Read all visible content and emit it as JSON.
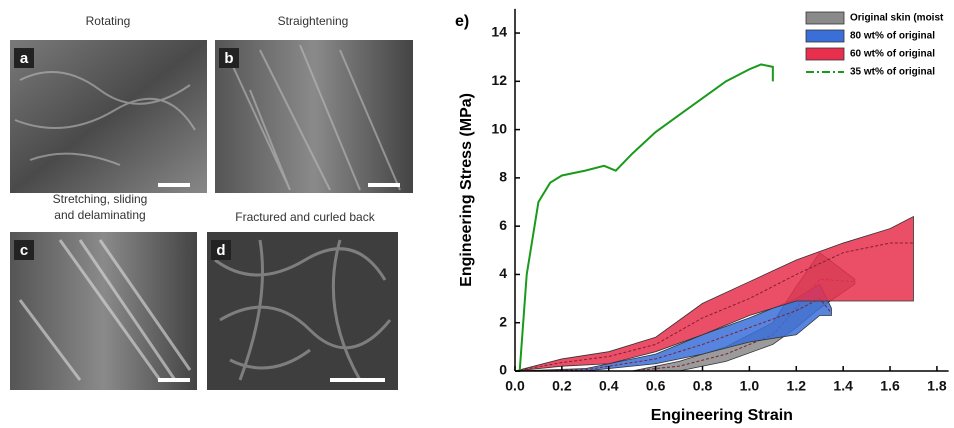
{
  "panels": [
    {
      "label": "a",
      "caption": [
        "Rotating"
      ]
    },
    {
      "label": "b",
      "caption": [
        "Straightening"
      ]
    },
    {
      "label": "c",
      "caption": [
        "Stretching, sliding",
        "and delaminating"
      ]
    },
    {
      "label": "d",
      "caption": [
        "Fractured and curled back"
      ]
    }
  ],
  "chart_data": {
    "type": "line",
    "panel_label": "e)",
    "x_label": "Engineering Strain",
    "y_label": "Engineering Stress (MPa)",
    "xlim": [
      0,
      1.85
    ],
    "ylim": [
      0,
      15
    ],
    "xticks": [
      {
        "value": 0,
        "label": "0.0"
      },
      0.2,
      0.4,
      0.6,
      0.8,
      {
        "value": 1,
        "label": "1.0"
      },
      1.2,
      1.4,
      1.6,
      1.8
    ],
    "yticks": [
      0,
      2,
      4,
      6,
      8,
      10,
      12,
      14
    ],
    "series": [
      {
        "name": "Original skin (moist",
        "color": "#8a8a8a",
        "style": "band",
        "x": [
          0.5,
          0.7,
          0.9,
          1.1,
          1.2,
          1.3,
          1.45
        ],
        "upper": [
          0,
          0.4,
          1.0,
          2.0,
          3.5,
          4.9,
          3.8
        ],
        "lower": [
          0,
          0,
          0.4,
          1.1,
          1.8,
          2.6,
          3.6
        ],
        "values": [
          0,
          0.2,
          0.7,
          1.5,
          2.6,
          3.8,
          3.7
        ]
      },
      {
        "name": "80 wt% of original",
        "color": "#3a6fd8",
        "style": "band",
        "x": [
          0,
          0.3,
          0.6,
          0.8,
          1.0,
          1.2,
          1.3,
          1.35
        ],
        "upper": [
          0,
          0.1,
          0.7,
          1.5,
          2.2,
          3.0,
          3.6,
          2.6
        ],
        "lower": [
          0,
          0,
          0.3,
          0.7,
          1.2,
          1.5,
          2.3,
          2.3
        ],
        "values": [
          0,
          0.05,
          0.5,
          1.1,
          1.8,
          2.5,
          3.0,
          2.4
        ]
      },
      {
        "name": "60 wt% of original",
        "color": "#e8304e",
        "style": "band",
        "x": [
          0,
          0.2,
          0.4,
          0.6,
          0.8,
          1.0,
          1.2,
          1.4,
          1.6,
          1.7
        ],
        "upper": [
          0,
          0.5,
          0.8,
          1.4,
          2.8,
          3.7,
          4.6,
          5.3,
          5.9,
          6.4
        ],
        "lower": [
          0,
          0.2,
          0.3,
          0.8,
          1.5,
          2.3,
          2.9,
          2.9,
          2.9,
          2.9
        ],
        "values": [
          0,
          0.35,
          0.6,
          1.1,
          2.2,
          3.0,
          4.0,
          4.9,
          5.3,
          5.3
        ]
      },
      {
        "name": "35 wt% of original",
        "color": "#1a9a1a",
        "style": "line",
        "x": [
          0,
          0.02,
          0.05,
          0.1,
          0.15,
          0.2,
          0.3,
          0.38,
          0.43,
          0.5,
          0.6,
          0.7,
          0.8,
          0.9,
          1.0,
          1.05,
          1.1,
          1.1
        ],
        "values": [
          0,
          0,
          4,
          7,
          7.8,
          8.1,
          8.3,
          8.5,
          8.3,
          9,
          9.9,
          10.6,
          11.3,
          12,
          12.5,
          12.7,
          12.6,
          12.0
        ]
      }
    ]
  }
}
